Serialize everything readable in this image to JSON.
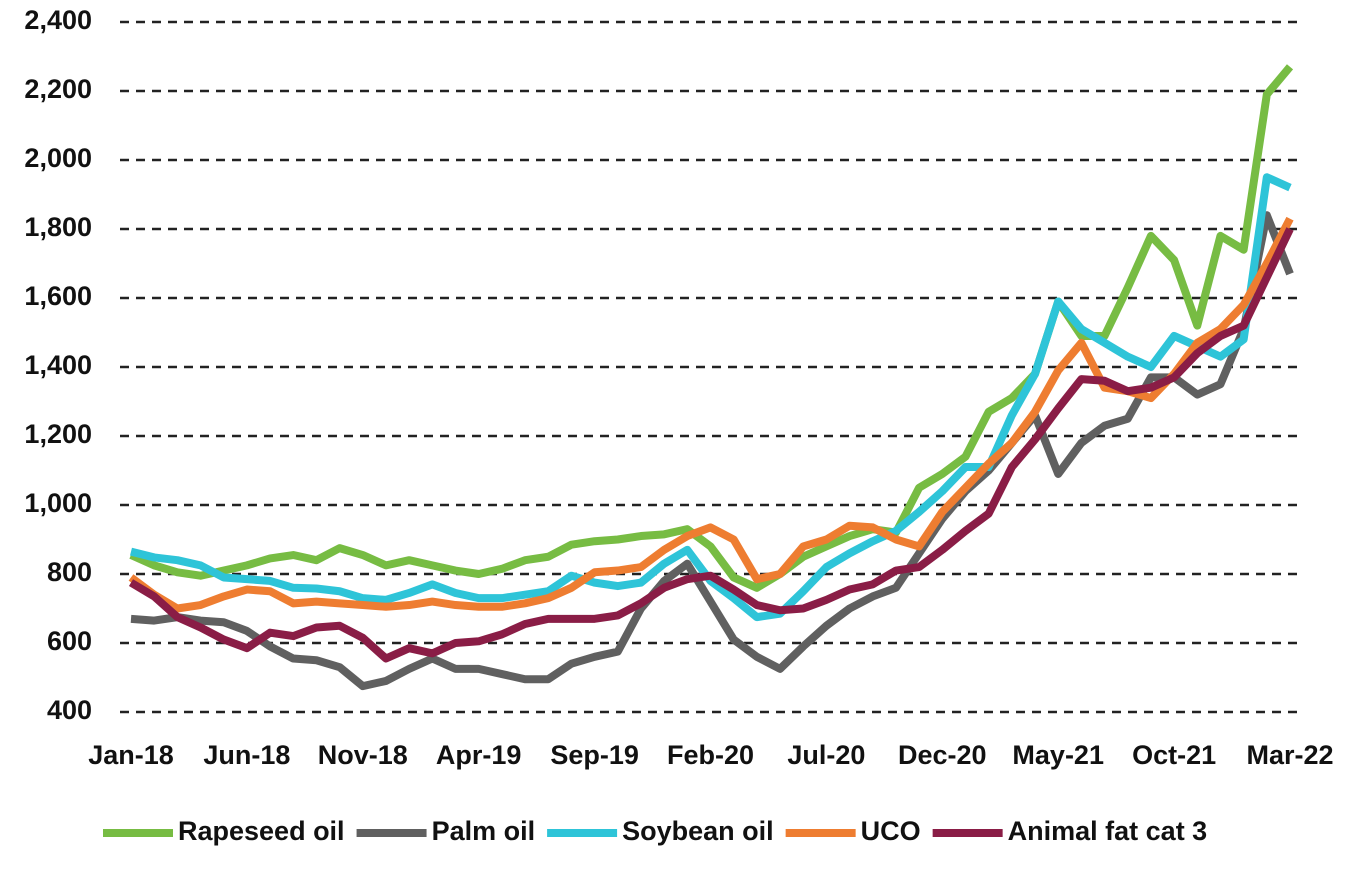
{
  "chart_data": {
    "type": "line",
    "categories": [
      "Jan-18",
      null,
      null,
      null,
      null,
      "Jun-18",
      null,
      null,
      null,
      null,
      "Nov-18",
      null,
      null,
      null,
      null,
      "Apr-19",
      null,
      null,
      null,
      null,
      "Sep-19",
      null,
      null,
      null,
      null,
      "Feb-20",
      null,
      null,
      null,
      null,
      "Jul-20",
      null,
      null,
      null,
      null,
      "Dec-20",
      null,
      null,
      null,
      null,
      "May-21",
      null,
      null,
      null,
      null,
      "Oct-21",
      null,
      null,
      null,
      null,
      "Mar-22"
    ],
    "series": [
      {
        "name": "Rapeseed oil",
        "color": "#77bc43",
        "values": [
          855,
          825,
          805,
          795,
          810,
          825,
          845,
          855,
          840,
          875,
          855,
          825,
          840,
          825,
          810,
          800,
          815,
          840,
          850,
          885,
          895,
          900,
          910,
          915,
          930,
          880,
          790,
          760,
          800,
          850,
          880,
          910,
          930,
          920,
          1050,
          1090,
          1140,
          1270,
          1310,
          1380,
          1590,
          1490,
          1490,
          1630,
          1780,
          1710,
          1520,
          1780,
          1740,
          2190,
          2270
        ]
      },
      {
        "name": "Palm oil",
        "color": "#606060",
        "values": [
          670,
          665,
          675,
          665,
          660,
          635,
          590,
          555,
          550,
          530,
          475,
          490,
          525,
          555,
          525,
          525,
          510,
          495,
          495,
          540,
          560,
          575,
          700,
          780,
          830,
          720,
          610,
          560,
          525,
          590,
          650,
          700,
          735,
          760,
          860,
          960,
          1040,
          1100,
          1180,
          1260,
          1090,
          1180,
          1230,
          1250,
          1370,
          1370,
          1320,
          1350,
          1510,
          1840,
          1670
        ]
      },
      {
        "name": "Soybean oil",
        "color": "#2ec4d8",
        "values": [
          865,
          848,
          840,
          825,
          790,
          785,
          780,
          760,
          758,
          750,
          730,
          725,
          745,
          770,
          745,
          730,
          730,
          740,
          750,
          795,
          775,
          765,
          775,
          830,
          870,
          780,
          730,
          675,
          685,
          750,
          820,
          860,
          895,
          925,
          980,
          1040,
          1110,
          1110,
          1260,
          1380,
          1590,
          1510,
          1470,
          1430,
          1400,
          1490,
          1460,
          1430,
          1480,
          1950,
          1920
        ]
      },
      {
        "name": "UCO",
        "color": "#ee7d31",
        "values": [
          790,
          740,
          700,
          710,
          735,
          755,
          750,
          715,
          720,
          715,
          710,
          705,
          710,
          720,
          710,
          705,
          705,
          715,
          730,
          760,
          805,
          810,
          820,
          870,
          910,
          935,
          900,
          785,
          800,
          880,
          900,
          940,
          935,
          900,
          880,
          980,
          1050,
          1120,
          1180,
          1270,
          1390,
          1470,
          1340,
          1330,
          1310,
          1380,
          1470,
          1510,
          1580,
          1700,
          1830
        ]
      },
      {
        "name": "Animal fat cat 3",
        "color": "#8a1d46",
        "values": [
          775,
          735,
          675,
          645,
          610,
          585,
          630,
          620,
          645,
          650,
          615,
          555,
          585,
          570,
          600,
          605,
          625,
          655,
          670,
          670,
          670,
          680,
          715,
          760,
          785,
          795,
          755,
          710,
          695,
          700,
          725,
          755,
          770,
          810,
          820,
          870,
          925,
          975,
          1110,
          1190,
          1280,
          1365,
          1360,
          1330,
          1340,
          1370,
          1440,
          1490,
          1520,
          1660,
          1800
        ]
      }
    ],
    "ylim": [
      400,
      2400
    ],
    "yticks": [
      400,
      600,
      800,
      {
        "value": 1000,
        "label": "1,000"
      },
      {
        "value": 1200,
        "label": "1,200"
      },
      {
        "value": 1400,
        "label": "1,400"
      },
      {
        "value": 1600,
        "label": "1,600"
      },
      {
        "value": 1800,
        "label": "1,800"
      },
      {
        "value": 2000,
        "label": "2,000"
      },
      {
        "value": 2200,
        "label": "2,200"
      },
      {
        "value": 2400,
        "label": "2,400"
      }
    ],
    "grid": true,
    "legend": "bottom"
  }
}
